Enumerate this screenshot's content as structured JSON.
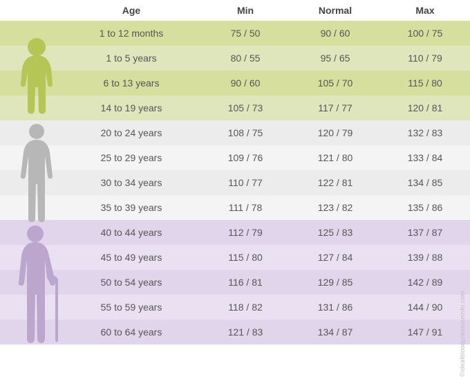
{
  "columns": [
    "Age",
    "Min",
    "Normal",
    "Max"
  ],
  "credit": "©idealbloodpressureinfo.com",
  "groups": [
    {
      "name": "child",
      "bg_even": "#d6df9e",
      "bg_odd": "#e0e6bb",
      "icon_color": "#b5c556",
      "rows": [
        {
          "age": "1 to 12 months",
          "min": "75 / 50",
          "normal": "90 / 60",
          "max": "100 / 75"
        },
        {
          "age": "1 to 5 years",
          "min": "80 / 55",
          "normal": "95 / 65",
          "max": "110 / 79"
        },
        {
          "age": "6 to 13 years",
          "min": "90 / 60",
          "normal": "105 / 70",
          "max": "115 / 80"
        },
        {
          "age": "14 to 19 years",
          "min": "105 / 73",
          "normal": "117 / 77",
          "max": "120 / 81"
        }
      ]
    },
    {
      "name": "adult",
      "bg_even": "#ececec",
      "bg_odd": "#f4f4f4",
      "icon_color": "#b7b7b7",
      "rows": [
        {
          "age": "20 to 24 years",
          "min": "108 / 75",
          "normal": "120 / 79",
          "max": "132 / 83"
        },
        {
          "age": "25 to 29 years",
          "min": "109 / 76",
          "normal": "121 / 80",
          "max": "133 / 84"
        },
        {
          "age": "30 to 34 years",
          "min": "110 / 77",
          "normal": "122 / 81",
          "max": "134 / 85"
        },
        {
          "age": "35 to 39 years",
          "min": "111 / 78",
          "normal": "123 / 82",
          "max": "135 / 86"
        }
      ]
    },
    {
      "name": "senior",
      "bg_even": "#e1d5eb",
      "bg_odd": "#e9e1f1",
      "icon_color": "#bda6ce",
      "rows": [
        {
          "age": "40 to 44 years",
          "min": "112 / 79",
          "normal": "125 / 83",
          "max": "137 / 87"
        },
        {
          "age": "45 to 49 years",
          "min": "115 / 80",
          "normal": "127 / 84",
          "max": "139 / 88"
        },
        {
          "age": "50 to 54 years",
          "min": "116 / 81",
          "normal": "129 / 85",
          "max": "142 / 89"
        },
        {
          "age": "55 to 59 years",
          "min": "118 / 82",
          "normal": "131 / 86",
          "max": "144 / 90"
        },
        {
          "age": "60 to 64 years",
          "min": "121 / 83",
          "normal": "134 / 87",
          "max": "147 / 91"
        }
      ]
    }
  ]
}
